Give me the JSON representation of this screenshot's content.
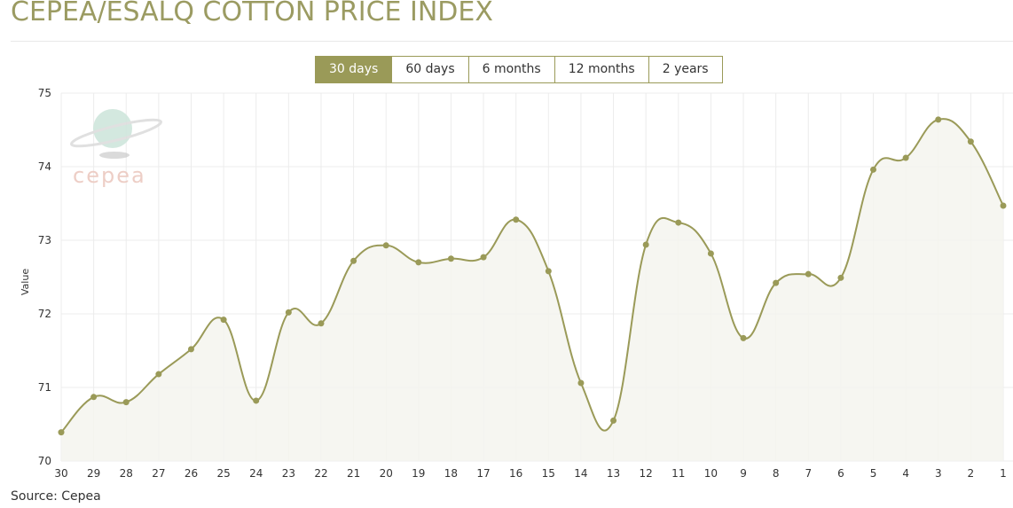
{
  "title": "CEPEA/ESALQ COTTON PRICE INDEX",
  "range_buttons": [
    {
      "label": "30 days",
      "active": true
    },
    {
      "label": "60 days",
      "active": false
    },
    {
      "label": "6 months",
      "active": false
    },
    {
      "label": "12 months",
      "active": false
    },
    {
      "label": "2 years",
      "active": false
    }
  ],
  "watermark": "cepea",
  "source": "Source: Cepea",
  "colors": {
    "accent": "#9a9a58",
    "area": "#f4f4ef",
    "watermark_text": "#ecc9c0"
  },
  "chart_data": {
    "type": "area",
    "xlabel": "",
    "ylabel": "Value",
    "ylim": [
      70,
      75
    ],
    "yticks": [
      70,
      71,
      72,
      73,
      74,
      75
    ],
    "grid": true,
    "smooth": true,
    "categories": [
      "30",
      "29",
      "28",
      "27",
      "26",
      "25",
      "24",
      "23",
      "22",
      "21",
      "20",
      "19",
      "18",
      "17",
      "16",
      "15",
      "14",
      "13",
      "12",
      "11",
      "10",
      "9",
      "8",
      "7",
      "6",
      "5",
      "4",
      "3",
      "2",
      "1"
    ],
    "values": [
      70.39,
      70.87,
      70.8,
      71.18,
      71.52,
      71.92,
      70.82,
      72.02,
      71.87,
      72.72,
      72.93,
      72.7,
      72.75,
      72.77,
      73.28,
      72.58,
      71.06,
      70.55,
      72.94,
      73.24,
      72.82,
      71.67,
      72.42,
      72.54,
      72.49,
      73.96,
      74.12,
      74.64,
      74.34,
      73.47
    ]
  }
}
